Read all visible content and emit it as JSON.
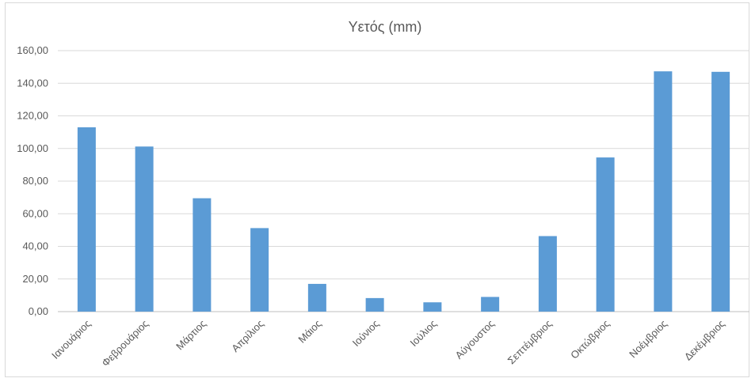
{
  "chart_data": {
    "type": "bar",
    "title": "Υετός (mm)",
    "categories": [
      "Ιανουάριος",
      "Φεβρουάριος",
      "Μάρτιος",
      "Απρίλιος",
      "Μάιος",
      "Ιούνιος",
      "Ιούλιος",
      "Αύγουστος",
      "Σεπτέμβριος",
      "Οκτώβριος",
      "Νοέμβριος",
      "Δεκέμβριος"
    ],
    "series": [
      {
        "values": [
          113.0,
          101.2,
          69.5,
          51.2,
          17.0,
          8.3,
          5.7,
          9.0,
          46.3,
          94.5,
          147.3,
          147.0
        ]
      }
    ],
    "y_ticks": [
      "0,00",
      "20,00",
      "40,00",
      "60,00",
      "80,00",
      "100,00",
      "120,00",
      "140,00",
      "160,00"
    ],
    "ylim": [
      0,
      160
    ],
    "grid": true,
    "legend": "none",
    "bar_color": "#5b9bd5"
  }
}
